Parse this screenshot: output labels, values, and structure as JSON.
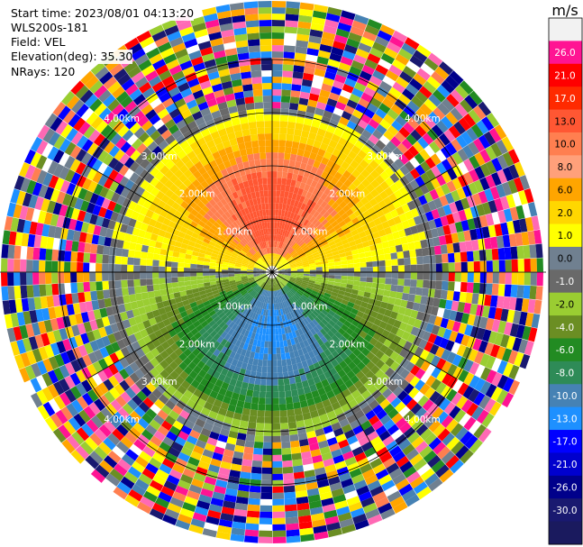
{
  "header": {
    "start_time": "Start time: 2023/08/01 04:13:20",
    "instrument": "WLS200s-181",
    "field": "Field: VEL",
    "elevation": "Elevation(deg): 35.30",
    "nrays": "NRays: 120"
  },
  "chart_data": {
    "type": "heatmap",
    "subtype": "ppi-radial-velocity",
    "field": "VEL",
    "unit": "m/s",
    "n_rays": 120,
    "elevation_deg": 35.3,
    "range_ring_labels": [
      "1.00km",
      "2.00km",
      "3.00km",
      "4.00km"
    ],
    "colorbar": {
      "title": "m/s",
      "ticks": [
        "26.0",
        "21.0",
        "17.0",
        "13.0",
        "10.0",
        "8.0",
        "6.0",
        "2.0",
        "1.0",
        "0.0",
        "-1.0",
        "-2.0",
        "-4.0",
        "-6.0",
        "-8.0",
        "-10.0",
        "-13.0",
        "-17.0",
        "-21.0",
        "-26.0",
        "-30.0"
      ],
      "colors": [
        "#f2f2f2",
        "#ff1493",
        "#ff0000",
        "#ff2a00",
        "#ff5733",
        "#ff7f50",
        "#ffa07a",
        "#ffa500",
        "#ffd700",
        "#ffff00",
        "#708090",
        "#696969",
        "#9acd32",
        "#6b8e23",
        "#228b22",
        "#2e8b57",
        "#4682b4",
        "#1e90ff",
        "#0000ff",
        "#0000cd",
        "#00008b",
        "#191970",
        "#1a1a5e"
      ]
    },
    "velocity_pattern": {
      "north_half": "positive (receding), peak ~8–10 m/s",
      "south_half": "negative (approaching), peak ~ -8 to -10 m/s",
      "outer_ranges": "noise beyond ~3 km"
    }
  }
}
